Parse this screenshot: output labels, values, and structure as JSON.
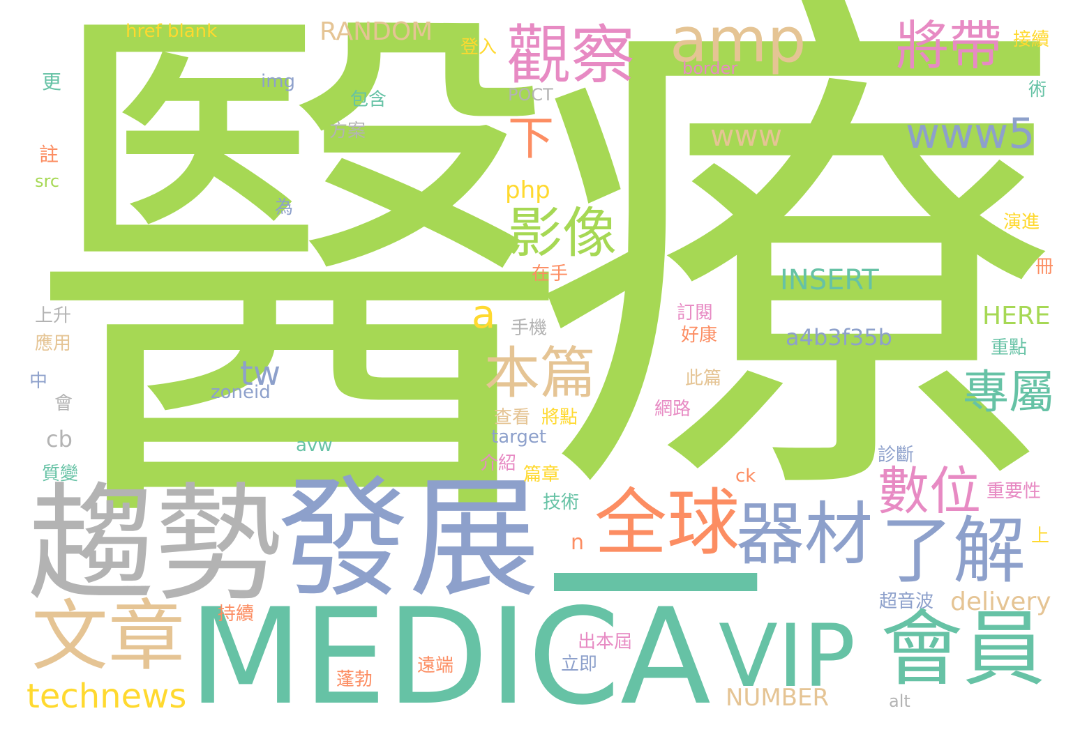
{
  "colors": {
    "green": "#a6d854",
    "teal": "#66c2a5",
    "blue": "#8da0cb",
    "pink": "#e78ac3",
    "orange": "#fc8d62",
    "tan": "#e5c494",
    "gray": "#b3b3b3",
    "yellow": "#ffd92f"
  },
  "words": [
    "醫",
    "療",
    "趨勢",
    "發展",
    "MEDICA",
    "一",
    "VIP",
    "會員",
    "文章",
    "technews",
    "全球",
    "器材",
    "了解",
    "數位",
    "觀察",
    "amp",
    "將帶",
    "www5",
    "www",
    "下",
    "影像",
    "php",
    "本篇",
    "專屬",
    "tw",
    "a",
    "INSERT",
    "a4b3f35b",
    "HERE",
    "delivery",
    "RANDOM",
    "href blank",
    "登入",
    "接續",
    "border",
    "img",
    "更",
    "POCT",
    "包含",
    "術",
    "方案",
    "註",
    "src",
    "為",
    "演進",
    "在手",
    "冊",
    "上升",
    "訂閱",
    "應用",
    "手機",
    "好康",
    "重點",
    "中",
    "會",
    "此篇",
    "zoneid",
    "cb",
    "網路",
    "將點",
    "查看",
    "target",
    "avw",
    "介紹",
    "篇章",
    "診斷",
    "質變",
    "重要性",
    "技術",
    "n",
    "上",
    "ck",
    "超音波",
    "持續",
    "出本屆",
    "立即",
    "遠端",
    "蓬勃",
    "NUMBER",
    "alt"
  ]
}
